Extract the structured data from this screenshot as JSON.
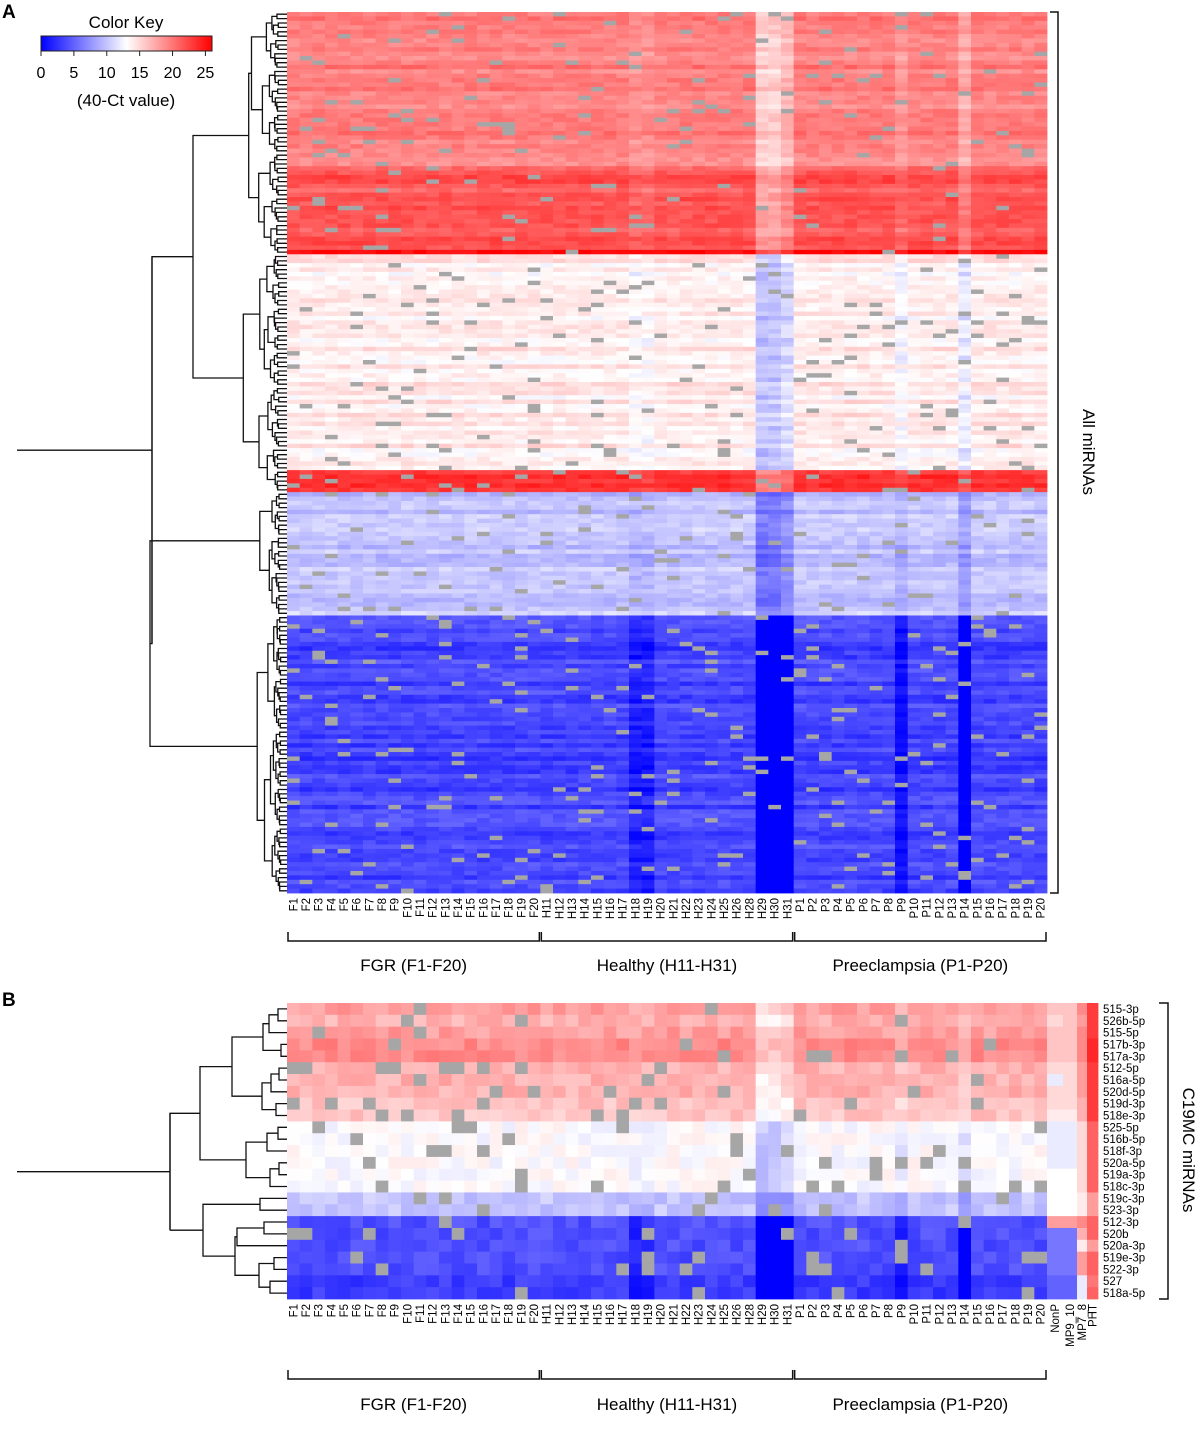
{
  "panel_labels": {
    "a": "A",
    "b": "B"
  },
  "color_key": {
    "title": "Color Key",
    "ticks": [
      "0",
      "5",
      "10",
      "15",
      "20",
      "25"
    ],
    "unit": "(40-Ct value)",
    "range": [
      0,
      26
    ],
    "colors": {
      "low": "#0000ff",
      "mid": "#ffffff",
      "high": "#ff0000",
      "missing": "#a6a6a6"
    }
  },
  "chart_data": [
    {
      "type": "heatmap",
      "panel": "A",
      "row_label": "All miRNAs",
      "rows": 200,
      "columns": [
        "F1",
        "F2",
        "F3",
        "F4",
        "F5",
        "F6",
        "F7",
        "F8",
        "F9",
        "F10",
        "F11",
        "F12",
        "F13",
        "F14",
        "F15",
        "F16",
        "F17",
        "F18",
        "F19",
        "F20",
        "H11",
        "H12",
        "H13",
        "H14",
        "H15",
        "H16",
        "H17",
        "H18",
        "H19",
        "H20",
        "H21",
        "H22",
        "H23",
        "H24",
        "H25",
        "H26",
        "H28",
        "H29",
        "H30",
        "H31",
        "P1",
        "P2",
        "P3",
        "P4",
        "P5",
        "P6",
        "P7",
        "P8",
        "P9",
        "P10",
        "P11",
        "P12",
        "P13",
        "P14",
        "P15",
        "P16",
        "P17",
        "P18",
        "P19",
        "P20"
      ],
      "groups": [
        {
          "label": "FGR (F1-F20)",
          "first": 0,
          "last": 19
        },
        {
          "label": "Healthy (H11-H31)",
          "first": 20,
          "last": 39
        },
        {
          "label": "Preeclampsia (P1-P20)",
          "first": 40,
          "last": 59
        }
      ],
      "row_clusters": [
        {
          "rows": 35,
          "value": 19.5
        },
        {
          "rows": 19,
          "value": 21.5
        },
        {
          "rows": 1,
          "value": 24.5
        },
        {
          "rows": 49,
          "value": 14.0
        },
        {
          "rows": 5,
          "value": 23.5
        },
        {
          "rows": 28,
          "value": 10.0
        },
        {
          "rows": 63,
          "value": 3.5
        }
      ]
    },
    {
      "type": "heatmap",
      "panel": "B",
      "row_label": "C19MC miRNAs",
      "rows": [
        "515-3p",
        "526b-5p",
        "515-5p",
        "517b-3p",
        "517a-3p",
        "512-5p",
        "516a-5p",
        "520d-5p",
        "519d-3p",
        "518e-3p",
        "525-5p",
        "516b-5p",
        "518f-3p",
        "520a-5p",
        "519a-3p",
        "518c-3p",
        "519c-3p",
        "523-3p",
        "512-3p",
        "520b",
        "520a-3p",
        "519e-3p",
        "522-3p",
        "527",
        "518a-5p"
      ],
      "columns": [
        "F1",
        "F2",
        "F3",
        "F4",
        "F5",
        "F6",
        "F7",
        "F8",
        "F9",
        "F10",
        "F11",
        "F12",
        "F13",
        "F14",
        "F15",
        "F16",
        "F17",
        "F18",
        "F19",
        "F20",
        "H11",
        "H12",
        "H13",
        "H14",
        "H15",
        "H16",
        "H17",
        "H18",
        "H19",
        "H20",
        "H21",
        "H22",
        "H23",
        "H24",
        "H25",
        "H26",
        "H28",
        "H29",
        "H30",
        "H31",
        "P1",
        "P2",
        "P3",
        "P4",
        "P5",
        "P6",
        "P7",
        "P8",
        "P9",
        "P10",
        "P11",
        "P12",
        "P13",
        "P14",
        "P15",
        "P16",
        "P17",
        "P18",
        "P19",
        "P20",
        "NonP",
        "MP9_10",
        "MP7_8",
        "PHT"
      ],
      "groups": [
        {
          "label": "FGR (F1-F20)",
          "first": 0,
          "last": 19
        },
        {
          "label": "Healthy (H11-H31)",
          "first": 20,
          "last": 39
        },
        {
          "label": "Preeclampsia (P1-P20)",
          "first": 40,
          "last": 59
        }
      ],
      "row_values": [
        18,
        17,
        18,
        19,
        19,
        17,
        17,
        17,
        16,
        16,
        13,
        13,
        13,
        13,
        13,
        13,
        10,
        10,
        4,
        4,
        4,
        4,
        4,
        3,
        3
      ],
      "extra_columns": {
        "NonP": [
          16,
          15,
          16,
          16,
          16,
          15,
          12,
          15,
          15,
          14,
          12,
          12,
          12,
          12,
          13,
          13,
          13,
          13,
          18,
          6,
          6,
          6,
          6,
          5,
          5
        ],
        "MP9_10": [
          16,
          16,
          16,
          16,
          16,
          15,
          15,
          15,
          15,
          14,
          12,
          12,
          12,
          12,
          13,
          13,
          13,
          13,
          18,
          6,
          6,
          6,
          6,
          5,
          5
        ],
        "MP7_8": [
          19,
          18,
          19,
          19,
          19,
          18,
          18,
          18,
          17,
          17,
          15,
          15,
          15,
          15,
          15,
          15,
          14,
          14,
          19,
          17,
          14,
          18,
          18,
          12,
          12
        ],
        "PHT": [
          23,
          23,
          23,
          24,
          24,
          23,
          23,
          23,
          23,
          23,
          21,
          21,
          21,
          21,
          21,
          21,
          18,
          18,
          21,
          21,
          18,
          21,
          21,
          20,
          21
        ]
      }
    }
  ]
}
